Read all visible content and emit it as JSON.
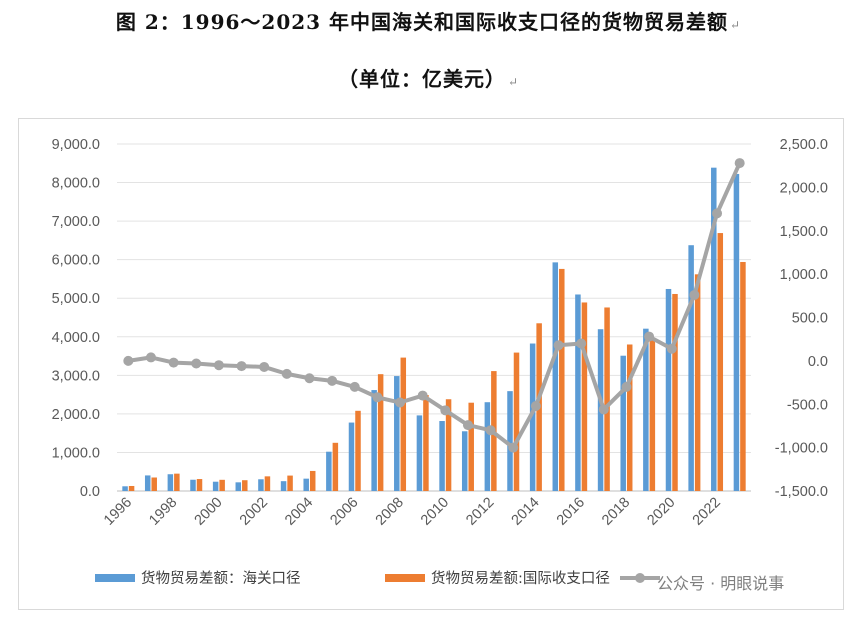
{
  "title": "图 2：1996～2023 年中国海关和国际收支口径的货物贸易差额",
  "subtitle": "（单位：亿美元）",
  "paragraph_mark": "↵",
  "watermark": "公众号 · 明眼说事",
  "chart_data": {
    "type": "bar",
    "years": [
      1996,
      1997,
      1998,
      1999,
      2000,
      2001,
      2002,
      2003,
      2004,
      2005,
      2006,
      2007,
      2008,
      2009,
      2010,
      2011,
      2012,
      2013,
      2014,
      2015,
      2016,
      2017,
      2018,
      2019,
      2020,
      2021,
      2022,
      2023
    ],
    "x_tick_labels": [
      "1996",
      "1998",
      "2000",
      "2002",
      "2004",
      "2006",
      "2008",
      "2010",
      "2012",
      "2014",
      "2016",
      "2018",
      "2020",
      "2022"
    ],
    "series": [
      {
        "name": "货物贸易差额：海关口径",
        "type": "bar",
        "axis": "left",
        "color": "#5b9bd5",
        "values": [
          122,
          404,
          435,
          292,
          241,
          225,
          304,
          255,
          320,
          1019,
          1775,
          2618,
          2981,
          1961,
          1815,
          1549,
          2303,
          2590,
          3825,
          5930,
          5097,
          4196,
          3509,
          4210,
          5240,
          6375,
          8386,
          8223
        ]
      },
      {
        "name": "货物贸易差额:国际收支口径",
        "type": "bar",
        "axis": "left",
        "color": "#ed7d31",
        "values": [
          130,
          350,
          450,
          310,
          290,
          280,
          380,
          400,
          520,
          1250,
          2080,
          3030,
          3460,
          2490,
          2380,
          2290,
          3110,
          3590,
          4350,
          5760,
          4890,
          4760,
          3800,
          3930,
          5110,
          5620,
          6690,
          5940
        ]
      },
      {
        "name": "",
        "type": "line",
        "axis": "right",
        "color": "#a5a5a5",
        "values": [
          0,
          40,
          -20,
          -30,
          -50,
          -60,
          -70,
          -150,
          -200,
          -230,
          -300,
          -420,
          -480,
          -400,
          -570,
          -740,
          -800,
          -1000,
          -520,
          180,
          200,
          -560,
          -300,
          280,
          140,
          760,
          1700,
          2280
        ]
      }
    ],
    "y_left": {
      "min": 0,
      "max": 9000,
      "step": 1000,
      "tick_labels": [
        "0.0",
        "1,000.0",
        "2,000.0",
        "3,000.0",
        "4,000.0",
        "5,000.0",
        "6,000.0",
        "7,000.0",
        "8,000.0",
        "9,000.0"
      ]
    },
    "y_right": {
      "min": -1500,
      "max": 2500,
      "step": 500,
      "tick_labels": [
        "-1,500.0",
        "-1,000.0",
        "-500.0",
        "0.0",
        "500.0",
        "1,000.0",
        "1,500.0",
        "2,000.0",
        "2,500.0"
      ]
    },
    "legend": {
      "position": "bottom",
      "entries": [
        "货物贸易差额：海关口径",
        "货物贸易差额:国际收支口径",
        ""
      ]
    },
    "grid": true
  }
}
